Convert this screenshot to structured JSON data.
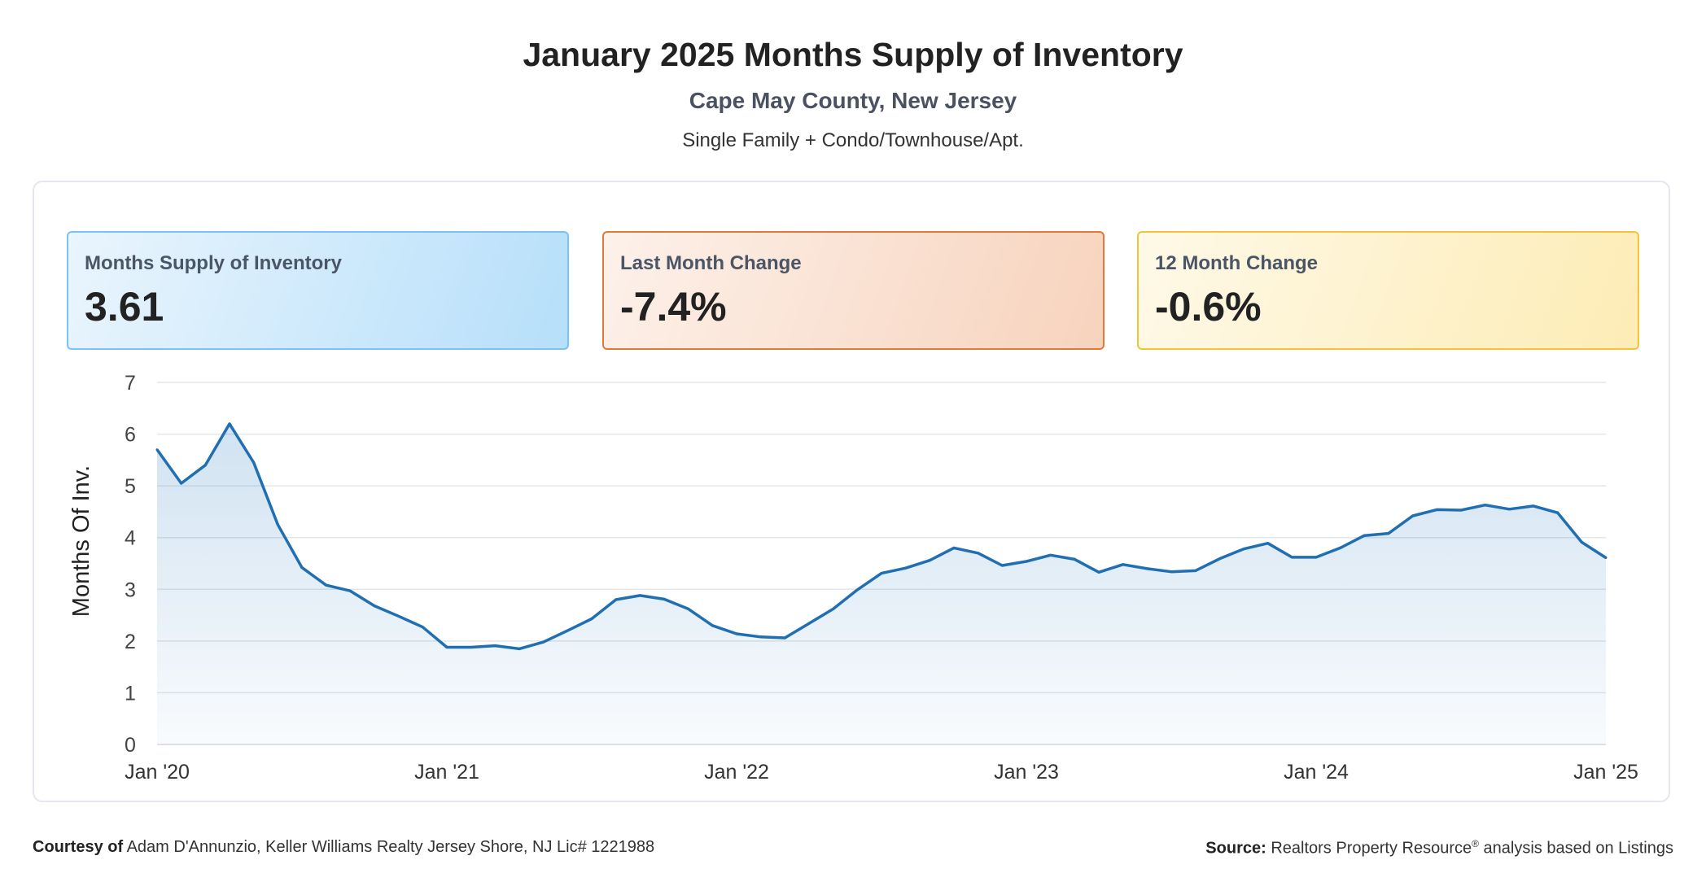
{
  "header": {
    "title": "January 2025 Months Supply of Inventory",
    "subtitle": "Cape May County, New Jersey",
    "property_type": "Single Family + Condo/Townhouse/Apt."
  },
  "cards": {
    "inventory": {
      "label": "Months Supply of Inventory",
      "value": "3.61",
      "border_color": "#7cc2f2"
    },
    "last_month": {
      "label": "Last Month Change",
      "value": "-7.4%",
      "border_color": "#e07a3a"
    },
    "twelve_month": {
      "label": "12 Month Change",
      "value": "-0.6%",
      "border_color": "#f2c437"
    }
  },
  "footer": {
    "courtesy_label": "Courtesy of",
    "courtesy_text": "Adam D'Annunzio, Keller Williams Realty Jersey Shore, NJ Lic# 1221988",
    "source_label": "Source:",
    "source_text_1": "Realtors Property Resource",
    "source_sup": "®",
    "source_text_2": " analysis based on Listings"
  },
  "chart_data": {
    "type": "area",
    "title": "",
    "xlabel": "",
    "ylabel": "Months Of Inv.",
    "ylim": [
      0,
      7
    ],
    "yticks": [
      0,
      1,
      2,
      3,
      4,
      5,
      6,
      7
    ],
    "xlim": [
      "2020-01",
      "2025-01"
    ],
    "x_tick_labels": [
      "Jan '20",
      "Jan '21",
      "Jan '22",
      "Jan '23",
      "Jan '24",
      "Jan '25"
    ],
    "x_ticks": [
      "2020-01",
      "2021-01",
      "2022-01",
      "2023-01",
      "2024-01",
      "2025-01"
    ],
    "grid": true,
    "line_color": "#1f6fb2",
    "fill_color": "#2c7cc0",
    "series": [
      {
        "x": [
          "2020-01",
          "2020-02",
          "2020-03",
          "2020-04",
          "2020-05",
          "2020-06",
          "2020-07",
          "2020-08",
          "2020-09",
          "2020-10",
          "2020-11",
          "2020-12",
          "2021-01",
          "2021-02",
          "2021-03",
          "2021-04",
          "2021-05",
          "2021-06",
          "2021-07",
          "2021-08",
          "2021-09",
          "2021-10",
          "2021-11",
          "2021-12",
          "2022-01",
          "2022-02",
          "2022-03",
          "2022-04",
          "2022-05",
          "2022-06",
          "2022-07",
          "2022-08",
          "2022-09",
          "2022-10",
          "2022-11",
          "2022-12",
          "2023-01",
          "2023-02",
          "2023-03",
          "2023-04",
          "2023-05",
          "2023-06",
          "2023-07",
          "2023-08",
          "2023-09",
          "2023-10",
          "2023-11",
          "2023-12",
          "2024-01",
          "2024-02",
          "2024-03",
          "2024-04",
          "2024-05",
          "2024-06",
          "2024-07",
          "2024-08",
          "2024-09",
          "2024-10",
          "2024-11",
          "2024-12",
          "2025-01"
        ],
        "values": [
          5.7,
          5.05,
          5.4,
          6.2,
          5.45,
          4.25,
          3.42,
          3.08,
          2.97,
          2.68,
          2.48,
          2.27,
          1.88,
          1.88,
          1.91,
          1.85,
          1.98,
          2.2,
          2.43,
          2.8,
          2.88,
          2.81,
          2.62,
          2.3,
          2.14,
          2.08,
          2.06,
          2.34,
          2.62,
          2.99,
          3.31,
          3.41,
          3.56,
          3.8,
          3.7,
          3.46,
          3.54,
          3.66,
          3.58,
          3.33,
          3.48,
          3.4,
          3.34,
          3.36,
          3.59,
          3.78,
          3.89,
          3.62,
          3.62,
          3.8,
          4.04,
          4.08,
          4.42,
          4.54,
          4.53,
          4.63,
          4.55,
          4.61,
          4.48,
          3.91,
          3.61
        ]
      }
    ]
  }
}
